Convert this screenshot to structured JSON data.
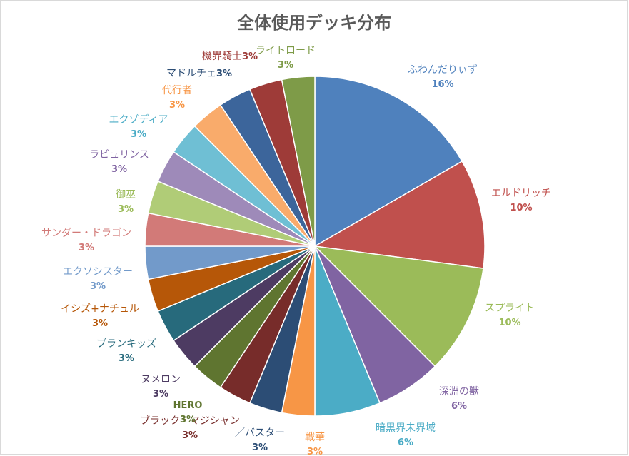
{
  "chart_data": {
    "type": "pie",
    "title": "全体使用デッキ分布",
    "categories": [
      "ふわんだりぃず",
      "エルドリッチ",
      "スプライト",
      "深淵の獣",
      "暗黒界未界域",
      "戦華",
      "／バスター",
      "ブラック・マジシャン",
      "HERO",
      "ヌメロン",
      "ブランキッズ",
      "イシズ+ナチュル",
      "エクソシスター",
      "サンダー・ドラゴン",
      "御巫",
      "ラビュリンス",
      "エクゾディア",
      "代行者",
      "マドルチェ",
      "機界騎士",
      "ライトロード"
    ],
    "values": [
      16,
      10,
      10,
      6,
      6,
      3,
      3,
      3,
      3,
      3,
      3,
      3,
      3,
      3,
      3,
      3,
      3,
      3,
      3,
      3,
      3
    ],
    "labels": [
      "16%",
      "10%",
      "10%",
      "6%",
      "6%",
      "3%",
      "3%",
      "3%",
      "3%",
      "3%",
      "3%",
      "3%",
      "3%",
      "3%",
      "3%",
      "3%",
      "3%",
      "3%",
      "3%",
      "3%",
      "3%"
    ],
    "colors": [
      "#4f81bd",
      "#c0504d",
      "#9bbb59",
      "#8064a2",
      "#4bacc6",
      "#f79646",
      "#2c4d75",
      "#772c2a",
      "#5f7530",
      "#4d3b62",
      "#276a7c",
      "#b65708",
      "#729aca",
      "#d27a78",
      "#b0cc77",
      "#9e8ab9",
      "#6fbfd4",
      "#f9ab6b",
      "#3c659b",
      "#9e3b38",
      "#7e9b48"
    ],
    "label_colors": [
      "#4f81bd",
      "#c0504d",
      "#9bbb59",
      "#8064a2",
      "#4bacc6",
      "#f79646",
      "#2c4d75",
      "#772c2a",
      "#5f7530",
      "#4d3b62",
      "#276a7c",
      "#b65708",
      "#729aca",
      "#d27a78",
      "#9bbb59",
      "#8064a2",
      "#4bacc6",
      "#f79646",
      "#2c4d75",
      "#9e3b38",
      "#7e9b48"
    ],
    "legend": "none"
  }
}
